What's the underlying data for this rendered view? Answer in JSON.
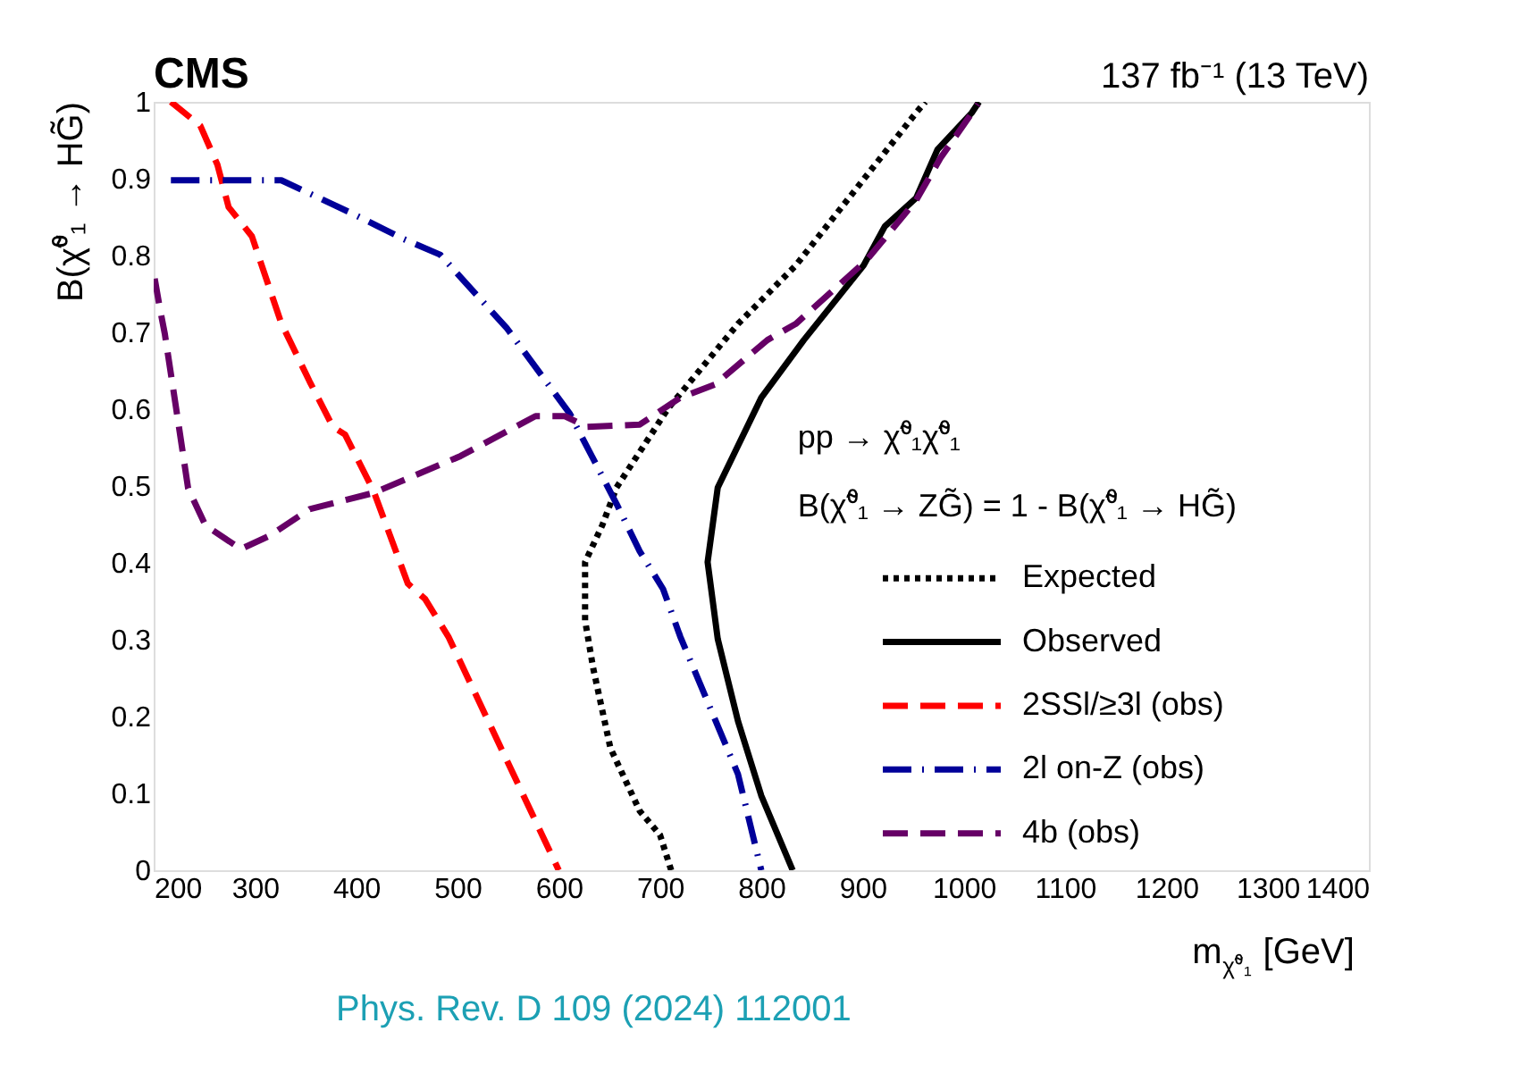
{
  "chart_data": {
    "type": "line",
    "title": "CMS",
    "xlabel": "m$_{χ̃⁰₁}$ [GeV]",
    "ylabel": "B(χ̃⁰₁ → HG̃)",
    "xlim": [
      200,
      1400
    ],
    "xticks": [
      200,
      300,
      400,
      500,
      600,
      700,
      800,
      900,
      1000,
      1100,
      1200,
      1300,
      1400
    ],
    "ylim": [
      0,
      1
    ],
    "yticks": [
      0,
      0.1,
      0.2,
      0.3,
      0.4,
      0.5,
      0.6,
      0.7,
      0.8,
      0.9,
      1
    ],
    "grid": false,
    "legend": "bottom right",
    "annotations": [
      "137 fb⁻¹ (13 TeV)",
      "pp → χ̃⁰₁χ̃⁰₁",
      "B(χ̃⁰₁ → ZG̃) = 1 - B(χ̃⁰₁ → HG̃)",
      "Phys. Rev. D 109 (2024) 112001"
    ],
    "series": [
      {
        "name": "Expected",
        "color": "#000000",
        "line_style": "dotted",
        "x": [
          711,
          700,
          680,
          651,
          634,
          626,
          626,
          643,
          657,
          708,
          777,
          834,
          953,
          962
        ],
        "values": [
          0,
          0.046,
          0.077,
          0.159,
          0.263,
          0.325,
          0.401,
          0.449,
          0.498,
          0.601,
          0.711,
          0.787,
          0.986,
          1
        ]
      },
      {
        "name": "Observed",
        "color": "#000000",
        "line_style": "solid",
        "x": [
          831,
          800,
          777,
          757,
          747,
          757,
          800,
          842,
          901,
          922,
          953,
          974,
          1008,
          1015
        ],
        "values": [
          0,
          0.097,
          0.194,
          0.301,
          0.401,
          0.498,
          0.615,
          0.69,
          0.787,
          0.838,
          0.875,
          0.938,
          0.986,
          1
        ]
      },
      {
        "name": "2SSl/≥3l (obs)",
        "color": "#ff0000",
        "line_style": "dashed",
        "x": [
          217,
          246,
          263,
          274,
          297,
          326,
          354,
          377,
          389,
          417,
          451,
          468,
          491,
          600
        ],
        "values": [
          1,
          0.969,
          0.918,
          0.863,
          0.825,
          0.712,
          0.636,
          0.577,
          0.567,
          0.494,
          0.373,
          0.353,
          0.304,
          0
        ]
      },
      {
        "name": "2l on-Z (obs)",
        "color": "#000099",
        "line_style": "dashdot",
        "x": [
          217,
          326,
          394,
          446,
          483,
          549,
          611,
          657,
          680,
          703,
          720,
          777,
          800
        ],
        "values": [
          0.898,
          0.898,
          0.856,
          0.822,
          0.801,
          0.705,
          0.594,
          0.477,
          0.415,
          0.366,
          0.304,
          0.125,
          0
        ]
      },
      {
        "name": "4b (obs)",
        "color": "#660066",
        "line_style": "dashed",
        "x": [
          201,
          206,
          211,
          223,
          234,
          251,
          286,
          314,
          354,
          417,
          503,
          577,
          606,
          628,
          680,
          720,
          754,
          806,
          834,
          904,
          953,
          977,
          1014
        ],
        "values": [
          0.77,
          0.732,
          0.698,
          0.594,
          0.497,
          0.449,
          0.418,
          0.435,
          0.47,
          0.491,
          0.539,
          0.591,
          0.591,
          0.577,
          0.58,
          0.615,
          0.632,
          0.69,
          0.711,
          0.794,
          0.872,
          0.927,
          0.997
        ]
      }
    ]
  }
}
